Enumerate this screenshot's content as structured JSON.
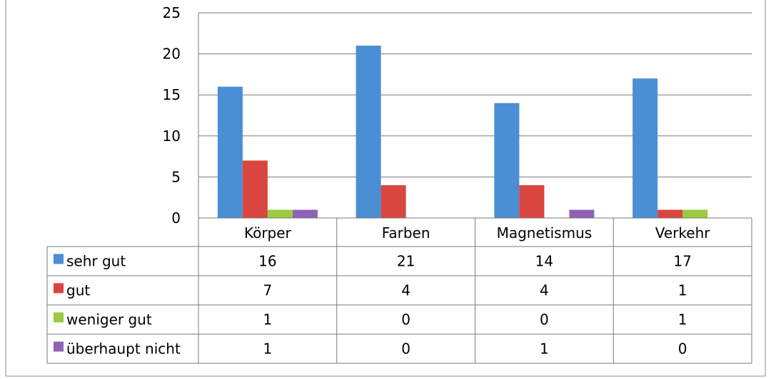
{
  "chart_data": {
    "type": "bar",
    "categories": [
      "Körper",
      "Farben",
      "Magnetismus",
      "Verkehr"
    ],
    "series": [
      {
        "name": "sehr gut",
        "values": [
          16,
          21,
          14,
          17
        ],
        "color": "#4A8ED3"
      },
      {
        "name": "gut",
        "values": [
          7,
          4,
          4,
          1
        ],
        "color": "#D9453F"
      },
      {
        "name": "weniger gut",
        "values": [
          1,
          0,
          0,
          1
        ],
        "color": "#9BCB3F"
      },
      {
        "name": "überhaupt nicht",
        "values": [
          1,
          0,
          1,
          0
        ],
        "color": "#8E63B6"
      }
    ],
    "y_ticks": [
      "0",
      "5",
      "10",
      "15",
      "20",
      "25"
    ],
    "ylim": [
      0,
      25
    ],
    "grid": true,
    "legend": "data-table"
  }
}
